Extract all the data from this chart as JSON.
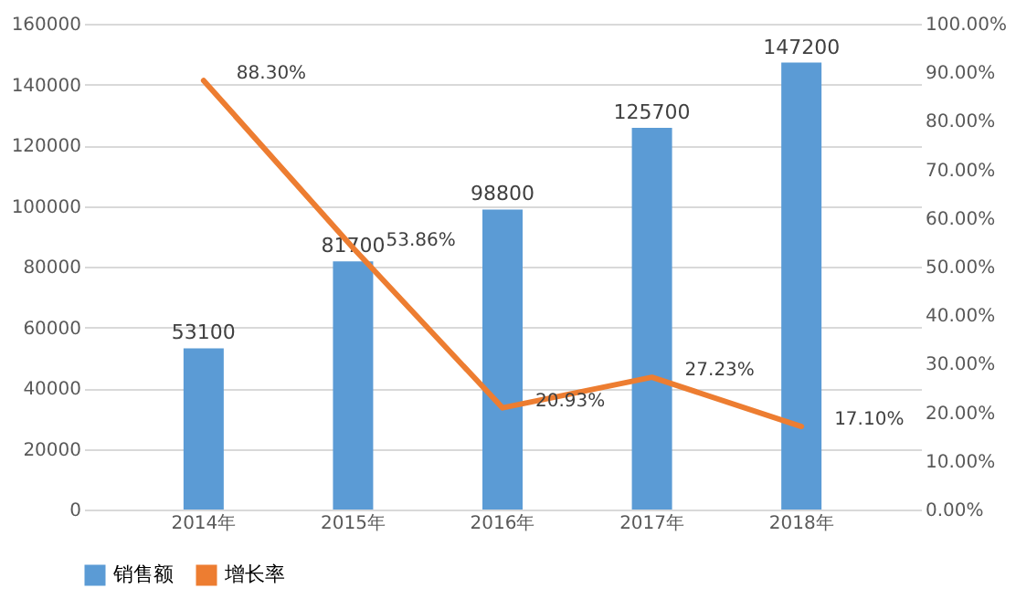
{
  "chart_data": {
    "type": "bar",
    "categories": [
      "2014年",
      "2015年",
      "2016年",
      "2017年",
      "2018年"
    ],
    "series": [
      {
        "name": "销售额",
        "type": "bar",
        "color": "#5b9bd5",
        "values": [
          53100,
          81700,
          98800,
          125700,
          147200
        ],
        "value_labels": [
          "53100",
          "81700",
          "98800",
          "125700",
          "147200"
        ]
      },
      {
        "name": "增长率",
        "type": "line",
        "axis": "y2",
        "color": "#ed7d31",
        "values": [
          88.3,
          53.86,
          20.93,
          27.23,
          17.1
        ],
        "value_labels": [
          "88.30%",
          "53.86%",
          "20.93%",
          "27.23%",
          "17.10%"
        ]
      }
    ],
    "ylim": [
      0,
      160000
    ],
    "yticks": [
      0,
      20000,
      40000,
      60000,
      80000,
      100000,
      120000,
      140000,
      160000
    ],
    "y2lim": [
      0,
      100
    ],
    "y2ticks": [
      {
        "value": 0,
        "label": "0.00%"
      },
      {
        "value": 10,
        "label": "10.00%"
      },
      {
        "value": 20,
        "label": "20.00%"
      },
      {
        "value": 30,
        "label": "30.00%"
      },
      {
        "value": 40,
        "label": "40.00%"
      },
      {
        "value": 50,
        "label": "50.00%"
      },
      {
        "value": 60,
        "label": "60.00%"
      },
      {
        "value": 70,
        "label": "70.00%"
      },
      {
        "value": 80,
        "label": "80.00%"
      },
      {
        "value": 90,
        "label": "90.00%"
      },
      {
        "value": 100,
        "label": "100.00%"
      }
    ],
    "grid": "y",
    "legend": "bottom"
  }
}
